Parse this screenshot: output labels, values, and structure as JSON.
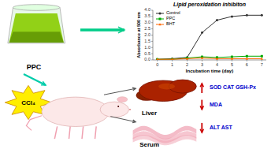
{
  "chart_data": {
    "type": "line",
    "title": "Lipid peroxidation inhibiton",
    "x_label": "Incubation time (day)",
    "y_label": "Absorbance at 500 nm",
    "x": [
      0,
      1,
      2,
      3,
      4,
      5,
      6,
      7
    ],
    "series": [
      {
        "name": "Control",
        "color": "#333333",
        "marker": "circle",
        "values": [
          0.05,
          0.1,
          0.2,
          2.2,
          3.2,
          3.5,
          3.6,
          3.6
        ]
      },
      {
        "name": "PPC",
        "color": "#00aa00",
        "marker": "square",
        "values": [
          0.05,
          0.05,
          0.15,
          0.25,
          0.2,
          0.25,
          0.3,
          0.3
        ]
      },
      {
        "name": "BHT",
        "color": "#ff6600",
        "marker": "triangle",
        "values": [
          0.05,
          0.05,
          0.1,
          0.15,
          0.1,
          0.1,
          0.1,
          0.1
        ]
      }
    ],
    "xlim": [
      -0.3,
      7.3
    ],
    "xticks": [
      0,
      1,
      2,
      3,
      4,
      5,
      6,
      7
    ],
    "ylim": [
      0.0,
      4.0
    ],
    "yticks": [
      {
        "value": 0,
        "label": "0.0"
      },
      0.5,
      {
        "value": 1,
        "label": "1.0"
      },
      1.5,
      {
        "value": 2,
        "label": "2.0"
      },
      2.5,
      {
        "value": 3,
        "label": "3.0"
      },
      3.5,
      {
        "value": 4,
        "label": "4.0"
      }
    ],
    "grid": false,
    "legend": "upper left",
    "annotations": [
      "PPC",
      "CCl₄",
      "Liver",
      "Serum",
      "SOD  CAT GSH-Px",
      "MDA",
      "ALT  AST"
    ]
  }
}
